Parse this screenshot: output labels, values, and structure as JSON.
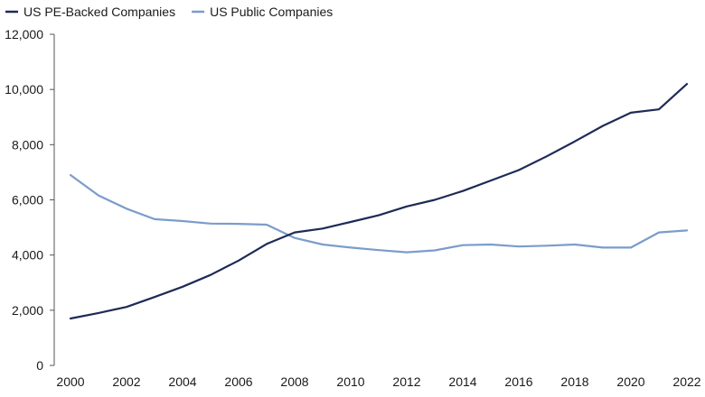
{
  "chart_data": {
    "type": "line",
    "title": "",
    "xlabel": "",
    "ylabel": "",
    "x": [
      2000,
      2001,
      2002,
      2003,
      2004,
      2005,
      2006,
      2007,
      2008,
      2009,
      2010,
      2011,
      2012,
      2013,
      2014,
      2015,
      2016,
      2017,
      2018,
      2019,
      2020,
      2021,
      2022
    ],
    "series": [
      {
        "name": "US PE-Backed Companies",
        "color": "#1f2a56",
        "values": [
          1700,
          1900,
          2120,
          2480,
          2850,
          3280,
          3800,
          4400,
          4820,
          4960,
          5200,
          5440,
          5760,
          6000,
          6320,
          6700,
          7080,
          7580,
          8120,
          8680,
          9160,
          9280,
          10200
        ]
      },
      {
        "name": "US Public Companies",
        "color": "#7b9ccb",
        "values": [
          6900,
          6160,
          5680,
          5300,
          5230,
          5140,
          5130,
          5100,
          4620,
          4380,
          4270,
          4180,
          4100,
          4170,
          4360,
          4380,
          4310,
          4340,
          4380,
          4270,
          4270,
          4820,
          4890
        ]
      }
    ],
    "ylim": [
      0,
      12000
    ],
    "xlim": [
      2000,
      2022
    ],
    "yticks": [
      0,
      2000,
      4000,
      6000,
      8000,
      10000,
      12000
    ],
    "ytick_labels": [
      "0",
      "2,000",
      "4,000",
      "6,000",
      "8,000",
      "10,000",
      "12,000"
    ],
    "xticks": [
      2000,
      2002,
      2004,
      2006,
      2008,
      2010,
      2012,
      2014,
      2016,
      2018,
      2020,
      2022
    ],
    "xtick_labels": [
      "2000",
      "2002",
      "2004",
      "2006",
      "2008",
      "2010",
      "2012",
      "2014",
      "2016",
      "2018",
      "2020",
      "2022"
    ],
    "grid": false,
    "legend_placement": "top-left",
    "axis_color": "#555555"
  }
}
